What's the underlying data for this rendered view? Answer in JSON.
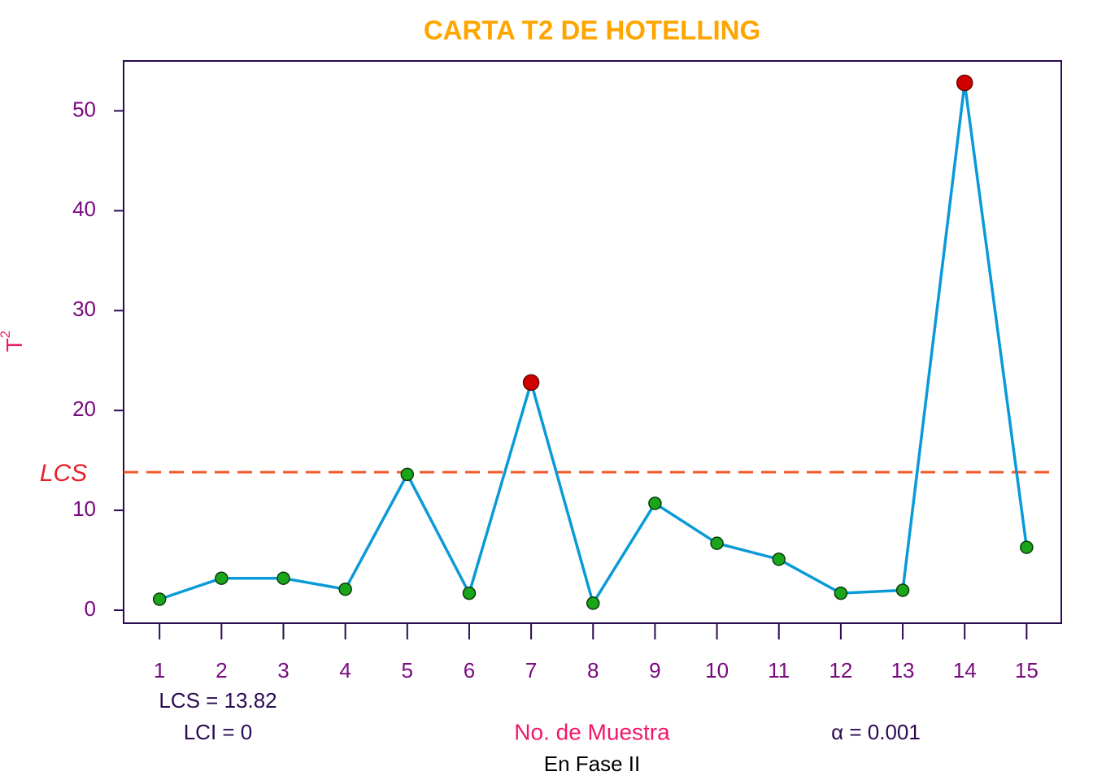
{
  "chart_data": {
    "type": "line",
    "title": "CARTA T2 DE HOTELLING",
    "y_label": "T",
    "y_label_superscript": "2",
    "x_label": "No. de Muestra",
    "subtitle": "En Fase II",
    "ucl": 13.82,
    "ucl_label": "LCS",
    "ucl_text": "LCS = 13.82",
    "lcl_text": "LCI = 0",
    "alpha_text": "α = 0.001",
    "x": [
      1,
      2,
      3,
      4,
      5,
      6,
      7,
      8,
      9,
      10,
      11,
      12,
      13,
      14,
      15
    ],
    "series": [
      {
        "name": "T2",
        "color": "#0a9ad8",
        "values": [
          1.1,
          3.2,
          3.2,
          2.1,
          13.6,
          1.7,
          22.8,
          0.7,
          10.7,
          6.7,
          5.1,
          1.7,
          2.0,
          52.8,
          6.3
        ]
      }
    ],
    "point_color": "#1aa51a",
    "out_color": "#d00000",
    "ucl_color": "#f05a28",
    "xlim": [
      0.42,
      15.56
    ],
    "ylim": [
      -1.3,
      55
    ],
    "xticks": [
      1,
      2,
      3,
      4,
      5,
      6,
      7,
      8,
      9,
      10,
      11,
      12,
      13,
      14,
      15
    ],
    "yticks": [
      0,
      10,
      20,
      30,
      40,
      50
    ]
  }
}
